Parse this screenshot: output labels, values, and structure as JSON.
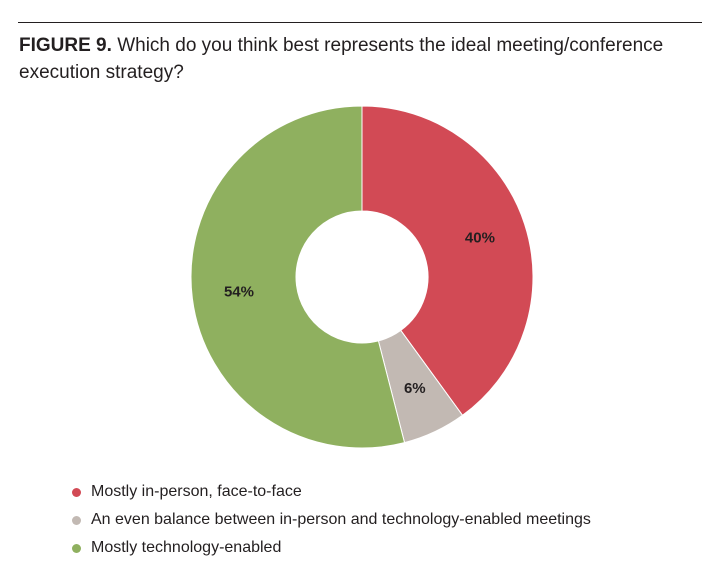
{
  "figure": {
    "label": "FIGURE 9.",
    "question": "Which do you think best represents the ideal meeting/conference execution strategy?"
  },
  "chart_data": {
    "type": "pie",
    "style": "donut",
    "categories": [
      "Mostly in-person, face-to-face",
      "An even balance between in-person and technology-enabled meetings",
      "Mostly technology-enabled"
    ],
    "values": [
      40,
      6,
      54
    ],
    "value_labels": [
      "40%",
      "6%",
      "54%"
    ],
    "colors": [
      "#d24a55",
      "#c2b9b3",
      "#8fb05f"
    ],
    "legend_position": "bottom-left",
    "start": "top, clockwise"
  }
}
